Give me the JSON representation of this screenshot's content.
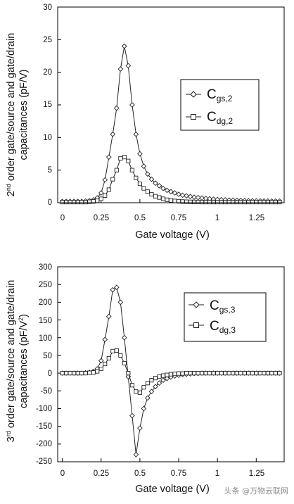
{
  "watermark": "头条 @万物云联网",
  "chart_data": [
    {
      "type": "line",
      "x": [
        0.0,
        0.025,
        0.05,
        0.075,
        0.1,
        0.125,
        0.15,
        0.175,
        0.2,
        0.225,
        0.25,
        0.275,
        0.3,
        0.325,
        0.35,
        0.375,
        0.4,
        0.425,
        0.45,
        0.475,
        0.5,
        0.525,
        0.55,
        0.575,
        0.6,
        0.625,
        0.65,
        0.675,
        0.7,
        0.725,
        0.75,
        0.775,
        0.8,
        0.825,
        0.85,
        0.875,
        0.9,
        0.925,
        0.95,
        0.975,
        1.0,
        1.025,
        1.05,
        1.075,
        1.1,
        1.125,
        1.15,
        1.175,
        1.2,
        1.225,
        1.25,
        1.275,
        1.3,
        1.325,
        1.35,
        1.375,
        1.4
      ],
      "series": [
        {
          "name_main": "C",
          "name_sub": "gs,2",
          "marker": "diamond",
          "values": [
            0.2,
            0.2,
            0.2,
            0.2,
            0.2,
            0.2,
            0.25,
            0.3,
            0.45,
            0.75,
            1.5,
            3.5,
            7.0,
            10.5,
            14.5,
            20.5,
            24.0,
            21.0,
            15.0,
            10.5,
            7.5,
            5.6,
            4.4,
            3.6,
            3.0,
            2.6,
            2.2,
            1.9,
            1.7,
            1.5,
            1.3,
            1.15,
            1.05,
            0.95,
            0.85,
            0.8,
            0.72,
            0.66,
            0.6,
            0.55,
            0.5,
            0.47,
            0.44,
            0.41,
            0.39,
            0.37,
            0.35,
            0.33,
            0.31,
            0.3,
            0.29,
            0.28,
            0.27,
            0.26,
            0.25,
            0.25,
            0.24
          ]
        },
        {
          "name_main": "C",
          "name_sub": "dg,2",
          "marker": "square",
          "values": [
            0.1,
            0.1,
            0.1,
            0.1,
            0.1,
            0.1,
            0.1,
            0.15,
            0.2,
            0.3,
            0.6,
            1.1,
            2.0,
            3.6,
            5.0,
            6.8,
            7.0,
            6.4,
            5.0,
            3.8,
            2.9,
            2.2,
            1.7,
            1.3,
            1.0,
            0.8,
            0.6,
            0.45,
            0.35,
            0.27,
            0.22,
            0.18,
            0.15,
            0.13,
            0.12,
            0.11,
            0.1,
            0.1,
            0.1,
            0.1,
            0.1,
            0.1,
            0.1,
            0.1,
            0.1,
            0.1,
            0.1,
            0.1,
            0.1,
            0.1,
            0.1,
            0.1,
            0.1,
            0.1,
            0.1,
            0.1,
            0.1
          ]
        }
      ],
      "xlabel": "Gate voltage (V)",
      "ylabel_sup_num": "2",
      "ylabel_sup_txt": "nd",
      "ylabel_line1_rest": " order gate/source and gate/drain",
      "ylabel_line2": "capacitances (pF/V)",
      "xlim": [
        -0.03,
        1.43
      ],
      "ylim": [
        0,
        30
      ],
      "xticks": [
        0,
        0.25,
        0.5,
        0.75,
        1,
        1.25
      ],
      "xtick_labels": [
        "0",
        "0.25",
        "0.5",
        "0.75",
        "1",
        "1.25"
      ],
      "yticks": [
        0,
        5,
        10,
        15,
        20,
        25,
        30
      ],
      "ytick_labels": [
        "0",
        "5",
        "10",
        "15",
        "20",
        "25",
        "30"
      ],
      "grid": false,
      "legend_position": "right"
    },
    {
      "type": "line",
      "x": [
        0.0,
        0.025,
        0.05,
        0.075,
        0.1,
        0.125,
        0.15,
        0.175,
        0.2,
        0.225,
        0.25,
        0.275,
        0.3,
        0.325,
        0.35,
        0.375,
        0.4,
        0.425,
        0.45,
        0.475,
        0.5,
        0.525,
        0.55,
        0.575,
        0.6,
        0.625,
        0.65,
        0.675,
        0.7,
        0.725,
        0.75,
        0.775,
        0.8,
        0.825,
        0.85,
        0.875,
        0.9,
        0.925,
        0.95,
        0.975,
        1.0,
        1.025,
        1.05,
        1.075,
        1.1,
        1.125,
        1.15,
        1.175,
        1.2,
        1.225,
        1.25,
        1.275,
        1.3,
        1.325,
        1.35,
        1.375,
        1.4
      ],
      "series": [
        {
          "name_main": "C",
          "name_sub": "gs,3",
          "marker": "diamond",
          "values": [
            0,
            0,
            0,
            0,
            0,
            0,
            1,
            2,
            5,
            12,
            35,
            95,
            160,
            235,
            242,
            200,
            100,
            -10,
            -120,
            -230,
            -155,
            -100,
            -70,
            -52,
            -38,
            -28,
            -20,
            -15,
            -11,
            -8,
            -6,
            -4,
            -3,
            -2,
            -1,
            -1,
            0,
            0,
            0,
            0,
            0,
            0,
            0,
            0,
            0,
            0,
            0,
            0,
            0,
            0,
            0,
            0,
            0,
            0,
            0,
            0,
            0
          ]
        },
        {
          "name_main": "C",
          "name_sub": "dg,3",
          "marker": "square",
          "values": [
            0,
            0,
            0,
            0,
            0,
            0,
            0,
            1,
            2,
            5,
            12,
            26,
            42,
            62,
            64,
            50,
            28,
            0,
            -34,
            -52,
            -55,
            -40,
            -28,
            -20,
            -14,
            -10,
            -7,
            -5,
            -3,
            -2,
            -1,
            -1,
            0,
            0,
            0,
            0,
            0,
            0,
            0,
            0,
            0,
            0,
            0,
            0,
            0,
            0,
            0,
            0,
            0,
            0,
            0,
            0,
            0,
            0,
            0,
            0,
            0
          ]
        }
      ],
      "xlabel": "Gate voltage (V)",
      "ylabel_sup_num": "3",
      "ylabel_sup_txt": "rd",
      "ylabel_line1_rest": " order gate/source and gate/drain",
      "ylabel_line2_main": "capacitances (pF/V",
      "ylabel_line2_sup": "2",
      "ylabel_line2_end": ")",
      "xlim": [
        -0.03,
        1.43
      ],
      "ylim": [
        -250,
        300
      ],
      "xticks": [
        0,
        0.25,
        0.5,
        0.75,
        1,
        1.25
      ],
      "xtick_labels": [
        "0",
        "0.25",
        "0.5",
        "0.75",
        "1",
        "1.25"
      ],
      "yticks": [
        -250,
        -200,
        -150,
        -100,
        -50,
        0,
        50,
        100,
        150,
        200,
        250,
        300
      ],
      "ytick_labels": [
        "-250",
        "-200",
        "-150",
        "-100",
        "-50",
        "0",
        "50",
        "100",
        "150",
        "200",
        "250",
        "300"
      ],
      "grid": false,
      "legend_position": "top-right"
    }
  ]
}
